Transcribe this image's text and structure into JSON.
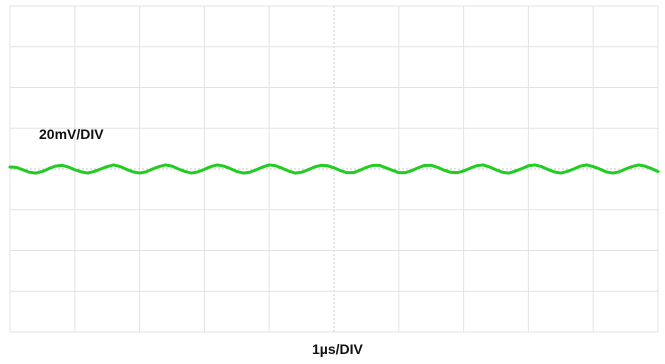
{
  "chart_data": {
    "type": "line",
    "title": "",
    "xlabel": "1µs/DIV",
    "ylabel": "20mV/DIV",
    "divisions": {
      "x": 10,
      "y": 8
    },
    "xlim": [
      0,
      10
    ],
    "ylim": [
      -4,
      4
    ],
    "grid": true,
    "series": [
      {
        "x_unit": "div",
        "y_unit": "div",
        "color": "#22cc22",
        "x": [
          0.0,
          0.1,
          0.2,
          0.3,
          0.4,
          0.5,
          0.6,
          0.7,
          0.8,
          0.9,
          1.0,
          1.1,
          1.2,
          1.3,
          1.4,
          1.5,
          1.6,
          1.7,
          1.8,
          1.9,
          2.0,
          2.1,
          2.2,
          2.3,
          2.4,
          2.5,
          2.6,
          2.7,
          2.8,
          2.9,
          3.0,
          3.1,
          3.2,
          3.3,
          3.4,
          3.5,
          3.6,
          3.7,
          3.8,
          3.9,
          4.0,
          4.1,
          4.2,
          4.3,
          4.4,
          4.5,
          4.6,
          4.7,
          4.8,
          4.9,
          5.0,
          5.1,
          5.2,
          5.3,
          5.4,
          5.5,
          5.6,
          5.7,
          5.8,
          5.9,
          6.0,
          6.1,
          6.2,
          6.3,
          6.4,
          6.5,
          6.6,
          6.7,
          6.8,
          6.9,
          7.0,
          7.1,
          7.2,
          7.3,
          7.4,
          7.5,
          7.6,
          7.7,
          7.8,
          7.9,
          8.0,
          8.1,
          8.2,
          8.3,
          8.4,
          8.5,
          8.6,
          8.7,
          8.8,
          8.9,
          9.0,
          9.1,
          9.2,
          9.3,
          9.4,
          9.5,
          9.6,
          9.7,
          9.8,
          9.9,
          10.0
        ],
        "y": [
          0.05,
          0.04,
          -0.02,
          -0.08,
          -0.1,
          -0.06,
          0.01,
          0.07,
          0.09,
          0.05,
          -0.02,
          -0.07,
          -0.1,
          -0.06,
          0.0,
          0.06,
          0.1,
          0.06,
          -0.01,
          -0.07,
          -0.1,
          -0.07,
          0.0,
          0.06,
          0.1,
          0.07,
          0.0,
          -0.06,
          -0.1,
          -0.07,
          -0.01,
          0.06,
          0.1,
          0.07,
          0.01,
          -0.06,
          -0.1,
          -0.08,
          -0.02,
          0.05,
          0.1,
          0.08,
          0.02,
          -0.05,
          -0.1,
          -0.08,
          -0.02,
          0.05,
          0.09,
          0.08,
          0.03,
          -0.04,
          -0.09,
          -0.09,
          -0.03,
          0.04,
          0.09,
          0.09,
          0.03,
          -0.03,
          -0.09,
          -0.09,
          -0.04,
          0.03,
          0.09,
          0.09,
          0.04,
          -0.03,
          -0.08,
          -0.09,
          -0.05,
          0.02,
          0.08,
          0.1,
          0.05,
          -0.02,
          -0.08,
          -0.1,
          -0.05,
          0.01,
          0.08,
          0.1,
          0.06,
          -0.01,
          -0.07,
          -0.1,
          -0.06,
          0.0,
          0.07,
          0.1,
          0.06,
          0.0,
          -0.07,
          -0.1,
          -0.07,
          0.0,
          0.06,
          0.1,
          0.07,
          0.01,
          -0.06
        ]
      }
    ]
  }
}
